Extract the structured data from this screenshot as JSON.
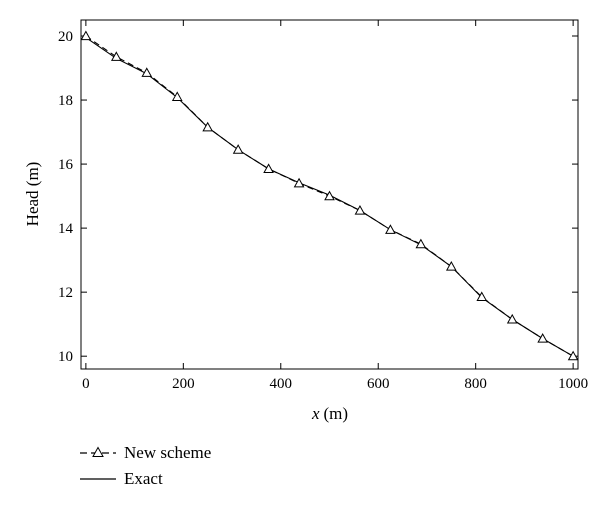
{
  "chart_data": {
    "type": "line",
    "title": "",
    "xlabel_italic": "x",
    "xlabel_unit": "(m)",
    "ylabel": "Head (m)",
    "xlim": [
      -10,
      1010
    ],
    "ylim": [
      9.6,
      20.5
    ],
    "xticks": [
      0,
      200,
      400,
      600,
      800,
      1000
    ],
    "yticks": [
      10,
      12,
      14,
      16,
      18,
      20
    ],
    "grid": false,
    "legend_position": "bottom-left, below plot",
    "series": [
      {
        "name": "New scheme",
        "style": "dashed",
        "marker": "triangle",
        "color": "#000000",
        "x": [
          0,
          62.5,
          125,
          187.5,
          250,
          312.5,
          375,
          437.5,
          500,
          562.5,
          625,
          687.5,
          750,
          812.5,
          875,
          937.5,
          1000
        ],
        "y": [
          20.0,
          19.35,
          18.85,
          18.1,
          17.15,
          16.45,
          15.85,
          15.4,
          15.0,
          14.55,
          13.95,
          13.5,
          12.8,
          11.85,
          11.15,
          10.55,
          10.0
        ]
      },
      {
        "name": "Exact",
        "style": "solid",
        "marker": "none",
        "color": "#000000",
        "x": [
          0,
          62.5,
          125,
          187.5,
          250,
          312.5,
          375,
          437.5,
          500,
          562.5,
          625,
          687.5,
          750,
          812.5,
          875,
          937.5,
          1000
        ],
        "y": [
          19.95,
          19.3,
          18.82,
          18.08,
          17.15,
          16.45,
          15.85,
          15.42,
          15.03,
          14.55,
          13.95,
          13.48,
          12.8,
          11.83,
          11.15,
          10.55,
          10.0
        ]
      }
    ]
  }
}
